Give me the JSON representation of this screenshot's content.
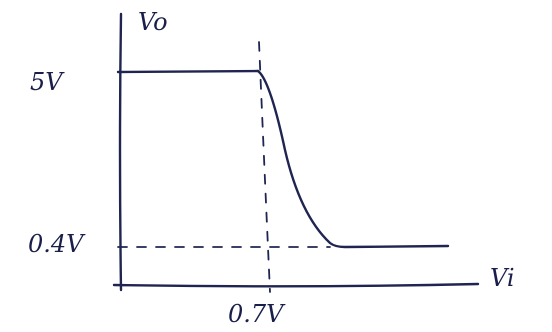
{
  "axes": {
    "y_label": "Vo",
    "x_label": "Vi"
  },
  "levels": {
    "high": "5V",
    "low": "0.4V",
    "threshold": "0.7V"
  }
}
